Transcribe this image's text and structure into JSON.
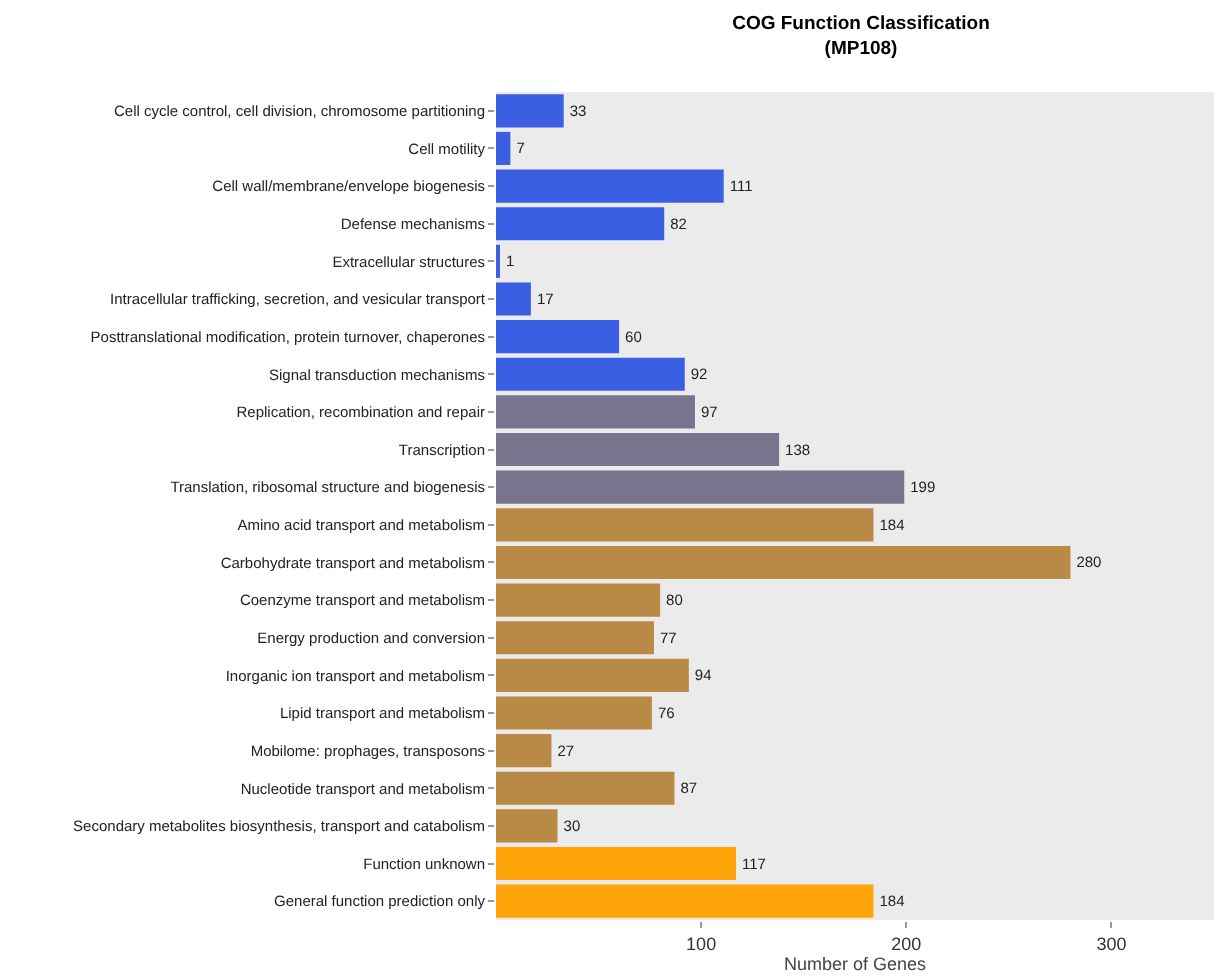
{
  "chart_data": {
    "type": "bar",
    "orientation": "horizontal",
    "title": "COG Function Classification\n(MP108)",
    "xlabel": "Number of Genes",
    "categories": [
      "Cell cycle control, cell division, chromosome partitioning",
      "Cell motility",
      "Cell wall/membrane/envelope biogenesis",
      "Defense mechanisms",
      "Extracellular structures",
      "Intracellular trafficking, secretion, and vesicular transport",
      "Posttranslational modification, protein turnover, chaperones",
      "Signal transduction mechanisms",
      "Replication, recombination and repair",
      "Transcription",
      "Translation, ribosomal structure and biogenesis",
      "Amino acid transport and metabolism",
      "Carbohydrate transport and metabolism",
      "Coenzyme transport and metabolism",
      "Energy production and conversion",
      "Inorganic ion transport and metabolism",
      "Lipid transport and metabolism",
      "Mobilome: prophages, transposons",
      "Nucleotide transport and metabolism",
      "Secondary metabolites biosynthesis, transport and catabolism",
      "Function unknown",
      "General function prediction only"
    ],
    "values": [
      33,
      7,
      111,
      82,
      1,
      17,
      60,
      92,
      97,
      138,
      199,
      184,
      280,
      80,
      77,
      94,
      76,
      27,
      87,
      30,
      117,
      184
    ],
    "colors": [
      "#3b5fe3",
      "#3b5fe3",
      "#3b5fe3",
      "#3b5fe3",
      "#3b5fe3",
      "#3b5fe3",
      "#3b5fe3",
      "#3b5fe3",
      "#78748e",
      "#78748e",
      "#78748e",
      "#b98a45",
      "#b98a45",
      "#b98a45",
      "#b98a45",
      "#b98a45",
      "#b98a45",
      "#b98a45",
      "#b98a45",
      "#b98a45",
      "#ffa50a",
      "#ffa50a"
    ],
    "xlim": [
      0,
      350
    ],
    "xticks": [
      100,
      200,
      300
    ],
    "data_labels": true,
    "grid": false
  }
}
